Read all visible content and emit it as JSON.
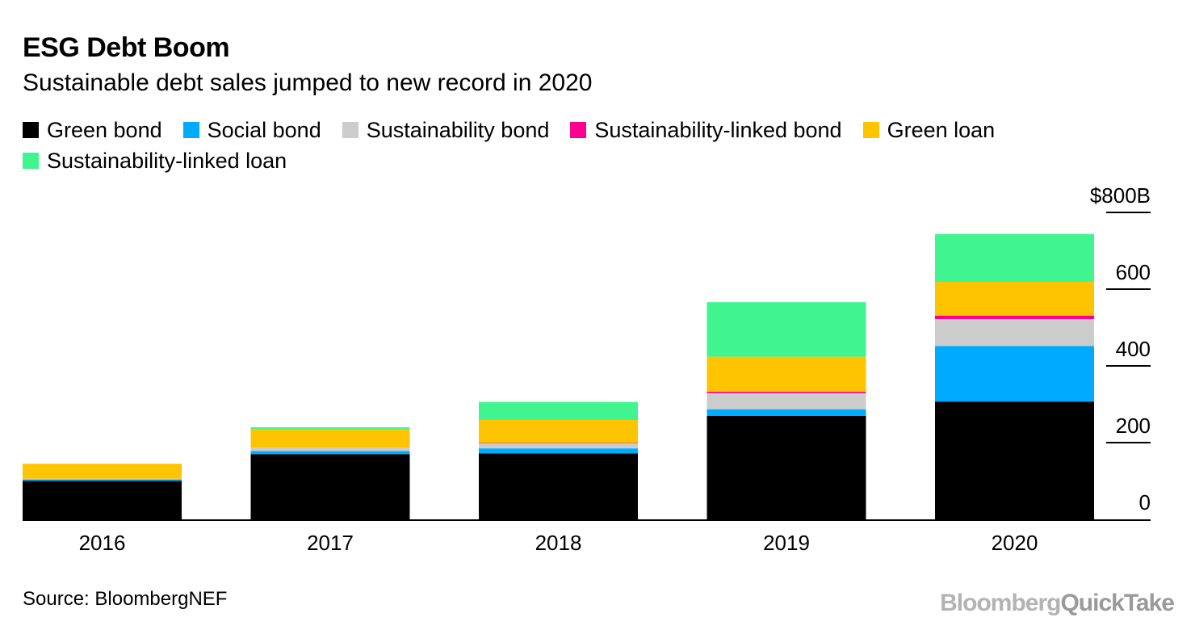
{
  "title": "ESG Debt Boom",
  "subtitle": "Sustainable debt sales jumped to new record in 2020",
  "source": "Source: BloombergNEF",
  "brand": {
    "part1": "Bloomberg",
    "part2": "QuickTake"
  },
  "chart_data": {
    "type": "bar",
    "stacked": true,
    "title": "ESG Debt Boom",
    "subtitle": "Sustainable debt sales jumped to new record in 2020",
    "categories": [
      "2016",
      "2017",
      "2018",
      "2019",
      "2020"
    ],
    "series": [
      {
        "name": "Green bond",
        "color": "#000000",
        "values": [
          100,
          170,
          172,
          270,
          307
        ]
      },
      {
        "name": "Social bond",
        "color": "#00aaff",
        "values": [
          4,
          8,
          13,
          17,
          145
        ]
      },
      {
        "name": "Sustainability bond",
        "color": "#cccccc",
        "values": [
          2,
          9,
          13,
          42,
          70
        ]
      },
      {
        "name": "Sustainability-linked bond",
        "color": "#ff0090",
        "values": [
          0,
          0,
          1,
          4,
          9
        ]
      },
      {
        "name": "Green loan",
        "color": "#ffc400",
        "values": [
          39,
          48,
          60,
          91,
          88
        ]
      },
      {
        "name": "Sustainability-linked loan",
        "color": "#40f590",
        "values": [
          0,
          5,
          47,
          142,
          125
        ]
      }
    ],
    "y_axis": {
      "ylim": [
        0,
        800
      ],
      "ticks": [
        0,
        200,
        400,
        600,
        800
      ],
      "tick_labels": [
        "0",
        "200",
        "400",
        "600",
        "$800B"
      ],
      "position": "right"
    },
    "xlabel": "",
    "ylabel": "",
    "legend_position": "top-left",
    "grid": false
  }
}
